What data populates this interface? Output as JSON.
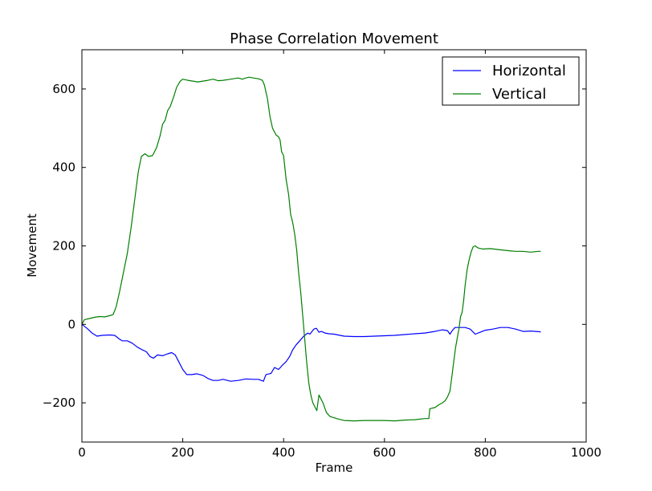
{
  "chart_data": {
    "type": "line",
    "title": "Phase Correlation Movement",
    "xlabel": "Frame",
    "ylabel": "Movement",
    "xlim": [
      0,
      1000
    ],
    "ylim": [
      -300,
      700
    ],
    "x_ticks": [
      0,
      200,
      400,
      600,
      800,
      1000
    ],
    "y_ticks": [
      -200,
      0,
      200,
      400,
      600
    ],
    "x_tick_labels": [
      "0",
      "200",
      "400",
      "600",
      "800",
      "1000"
    ],
    "y_tick_labels": [
      "−200",
      "0",
      "200",
      "400",
      "600"
    ],
    "grid": false,
    "legend_position": "top-right",
    "series": [
      {
        "name": "Horizontal",
        "color": "#0000ff",
        "points": [
          [
            0,
            0
          ],
          [
            10,
            -10
          ],
          [
            20,
            -22
          ],
          [
            30,
            -30
          ],
          [
            40,
            -28
          ],
          [
            55,
            -27
          ],
          [
            65,
            -28
          ],
          [
            75,
            -38
          ],
          [
            80,
            -42
          ],
          [
            90,
            -42
          ],
          [
            100,
            -48
          ],
          [
            110,
            -58
          ],
          [
            120,
            -65
          ],
          [
            128,
            -70
          ],
          [
            135,
            -82
          ],
          [
            142,
            -86
          ],
          [
            150,
            -78
          ],
          [
            160,
            -80
          ],
          [
            170,
            -75
          ],
          [
            178,
            -72
          ],
          [
            185,
            -78
          ],
          [
            192,
            -95
          ],
          [
            200,
            -115
          ],
          [
            208,
            -128
          ],
          [
            218,
            -128
          ],
          [
            228,
            -126
          ],
          [
            240,
            -130
          ],
          [
            250,
            -138
          ],
          [
            260,
            -143
          ],
          [
            270,
            -143
          ],
          [
            280,
            -140
          ],
          [
            295,
            -145
          ],
          [
            310,
            -143
          ],
          [
            325,
            -139
          ],
          [
            340,
            -140
          ],
          [
            350,
            -140
          ],
          [
            360,
            -145
          ],
          [
            365,
            -128
          ],
          [
            375,
            -125
          ],
          [
            382,
            -110
          ],
          [
            390,
            -115
          ],
          [
            397,
            -105
          ],
          [
            405,
            -95
          ],
          [
            412,
            -82
          ],
          [
            418,
            -65
          ],
          [
            425,
            -52
          ],
          [
            432,
            -42
          ],
          [
            440,
            -30
          ],
          [
            448,
            -22
          ],
          [
            452,
            -25
          ],
          [
            460,
            -12
          ],
          [
            465,
            -10
          ],
          [
            470,
            -20
          ],
          [
            475,
            -18
          ],
          [
            482,
            -22
          ],
          [
            490,
            -24
          ],
          [
            500,
            -25
          ],
          [
            520,
            -30
          ],
          [
            540,
            -31
          ],
          [
            560,
            -31
          ],
          [
            580,
            -30
          ],
          [
            600,
            -29
          ],
          [
            620,
            -28
          ],
          [
            640,
            -26
          ],
          [
            660,
            -24
          ],
          [
            680,
            -22
          ],
          [
            700,
            -18
          ],
          [
            715,
            -14
          ],
          [
            725,
            -16
          ],
          [
            730,
            -25
          ],
          [
            735,
            -15
          ],
          [
            740,
            -8
          ],
          [
            750,
            -8
          ],
          [
            760,
            -8
          ],
          [
            770,
            -12
          ],
          [
            780,
            -25
          ],
          [
            790,
            -20
          ],
          [
            800,
            -15
          ],
          [
            815,
            -12
          ],
          [
            830,
            -8
          ],
          [
            845,
            -8
          ],
          [
            860,
            -12
          ],
          [
            875,
            -18
          ],
          [
            890,
            -17
          ],
          [
            900,
            -18
          ],
          [
            910,
            -19
          ]
        ]
      },
      {
        "name": "Vertical",
        "color": "#007f00",
        "points": [
          [
            0,
            0
          ],
          [
            5,
            12
          ],
          [
            15,
            15
          ],
          [
            25,
            18
          ],
          [
            35,
            20
          ],
          [
            45,
            19
          ],
          [
            55,
            22
          ],
          [
            62,
            25
          ],
          [
            68,
            45
          ],
          [
            75,
            85
          ],
          [
            82,
            130
          ],
          [
            90,
            180
          ],
          [
            98,
            250
          ],
          [
            105,
            320
          ],
          [
            112,
            390
          ],
          [
            118,
            428
          ],
          [
            125,
            435
          ],
          [
            132,
            428
          ],
          [
            140,
            430
          ],
          [
            148,
            450
          ],
          [
            155,
            480
          ],
          [
            160,
            510
          ],
          [
            165,
            520
          ],
          [
            170,
            545
          ],
          [
            175,
            555
          ],
          [
            182,
            580
          ],
          [
            188,
            605
          ],
          [
            195,
            620
          ],
          [
            200,
            625
          ],
          [
            210,
            622
          ],
          [
            220,
            620
          ],
          [
            230,
            618
          ],
          [
            240,
            620
          ],
          [
            250,
            622
          ],
          [
            260,
            625
          ],
          [
            270,
            621
          ],
          [
            280,
            622
          ],
          [
            290,
            624
          ],
          [
            300,
            626
          ],
          [
            310,
            628
          ],
          [
            318,
            625
          ],
          [
            325,
            628
          ],
          [
            332,
            630
          ],
          [
            340,
            628
          ],
          [
            350,
            626
          ],
          [
            358,
            622
          ],
          [
            362,
            610
          ],
          [
            368,
            575
          ],
          [
            373,
            530
          ],
          [
            378,
            500
          ],
          [
            385,
            483
          ],
          [
            390,
            478
          ],
          [
            393,
            470
          ],
          [
            396,
            440
          ],
          [
            400,
            430
          ],
          [
            405,
            370
          ],
          [
            410,
            330
          ],
          [
            414,
            280
          ],
          [
            418,
            260
          ],
          [
            422,
            230
          ],
          [
            426,
            190
          ],
          [
            430,
            130
          ],
          [
            434,
            80
          ],
          [
            438,
            20
          ],
          [
            442,
            -40
          ],
          [
            446,
            -100
          ],
          [
            450,
            -150
          ],
          [
            454,
            -180
          ],
          [
            458,
            -200
          ],
          [
            462,
            -210
          ],
          [
            466,
            -220
          ],
          [
            470,
            -180
          ],
          [
            474,
            -190
          ],
          [
            478,
            -200
          ],
          [
            485,
            -225
          ],
          [
            492,
            -235
          ],
          [
            500,
            -238
          ],
          [
            510,
            -242
          ],
          [
            520,
            -245
          ],
          [
            540,
            -246
          ],
          [
            560,
            -245
          ],
          [
            580,
            -245
          ],
          [
            600,
            -245
          ],
          [
            620,
            -246
          ],
          [
            640,
            -244
          ],
          [
            660,
            -243
          ],
          [
            680,
            -240
          ],
          [
            688,
            -240
          ],
          [
            690,
            -215
          ],
          [
            700,
            -212
          ],
          [
            708,
            -205
          ],
          [
            715,
            -200
          ],
          [
            720,
            -195
          ],
          [
            725,
            -185
          ],
          [
            730,
            -170
          ],
          [
            733,
            -140
          ],
          [
            737,
            -100
          ],
          [
            741,
            -60
          ],
          [
            745,
            -30
          ],
          [
            748,
            -10
          ],
          [
            751,
            20
          ],
          [
            754,
            30
          ],
          [
            757,
            60
          ],
          [
            760,
            100
          ],
          [
            764,
            140
          ],
          [
            768,
            165
          ],
          [
            772,
            185
          ],
          [
            776,
            198
          ],
          [
            780,
            200
          ],
          [
            785,
            195
          ],
          [
            795,
            192
          ],
          [
            810,
            193
          ],
          [
            830,
            190
          ],
          [
            845,
            188
          ],
          [
            860,
            186
          ],
          [
            875,
            186
          ],
          [
            890,
            184
          ],
          [
            905,
            186
          ],
          [
            910,
            186
          ]
        ]
      }
    ]
  }
}
